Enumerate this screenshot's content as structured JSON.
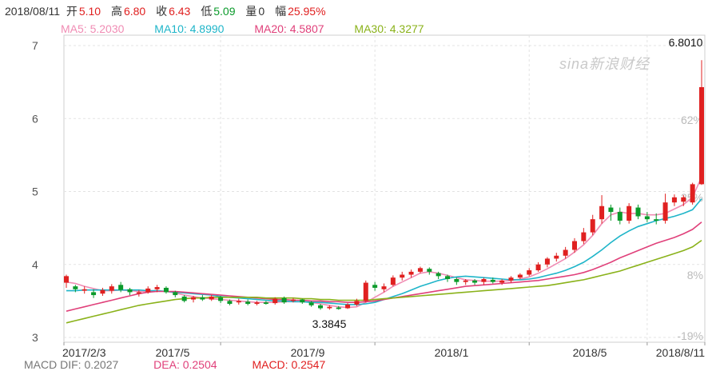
{
  "header": {
    "date": "2018/08/11",
    "open_label": "开",
    "open": "5.10",
    "high_label": "高",
    "high": "6.80",
    "close_label": "收",
    "close": "6.43",
    "low_label": "低",
    "low": "5.09",
    "volume_label": "量",
    "volume": "0",
    "change_label": "幅",
    "change": "25.95%"
  },
  "ma_legend": [
    {
      "label": "MA5: 5.2030",
      "color": "#f08cb4"
    },
    {
      "label": "MA10: 4.8990",
      "color": "#1fb5c9"
    },
    {
      "label": "MA20: 4.5807",
      "color": "#e0407a"
    },
    {
      "label": "MA30: 4.3277",
      "color": "#8ab21a"
    }
  ],
  "macd_legend": [
    {
      "label": "MACD  DIF: 0.2027",
      "color": "#777777"
    },
    {
      "label": "DEA: 0.2504",
      "color": "#e0407a"
    },
    {
      "label": "MACD: 0.2547",
      "color": "#e02020"
    }
  ],
  "watermark": "sina新浪财经",
  "chart_data": {
    "type": "candlestick",
    "x_ticks": [
      "2017/2/3",
      "2017/5",
      "2017/9",
      "2018/1",
      "2018/5",
      "2018/8/11"
    ],
    "y_ticks": [
      "7",
      "6",
      "5",
      "4",
      "3"
    ],
    "ylim": [
      3.0,
      7.0
    ],
    "pct_ticks": [
      "62%",
      "35%",
      "8%",
      "-19%"
    ],
    "annotations": {
      "max": "6.8010",
      "min": "3.3845"
    },
    "up_color": "#e02020",
    "down_color": "#0a9a2a",
    "candles": [
      [
        3.75,
        3.84,
        3.68,
        3.86
      ],
      [
        3.7,
        3.66,
        3.62,
        3.72
      ],
      [
        3.64,
        3.66,
        3.6,
        3.7
      ],
      [
        3.62,
        3.58,
        3.54,
        3.66
      ],
      [
        3.6,
        3.65,
        3.57,
        3.68
      ],
      [
        3.64,
        3.7,
        3.6,
        3.73
      ],
      [
        3.72,
        3.65,
        3.62,
        3.76
      ],
      [
        3.66,
        3.62,
        3.58,
        3.68
      ],
      [
        3.6,
        3.62,
        3.56,
        3.65
      ],
      [
        3.62,
        3.67,
        3.6,
        3.7
      ],
      [
        3.66,
        3.69,
        3.62,
        3.72
      ],
      [
        3.68,
        3.62,
        3.6,
        3.7
      ],
      [
        3.62,
        3.58,
        3.55,
        3.64
      ],
      [
        3.56,
        3.5,
        3.48,
        3.58
      ],
      [
        3.52,
        3.55,
        3.48,
        3.57
      ],
      [
        3.55,
        3.52,
        3.5,
        3.58
      ],
      [
        3.52,
        3.56,
        3.5,
        3.58
      ],
      [
        3.55,
        3.5,
        3.47,
        3.57
      ],
      [
        3.5,
        3.46,
        3.44,
        3.52
      ],
      [
        3.48,
        3.5,
        3.45,
        3.53
      ],
      [
        3.49,
        3.46,
        3.44,
        3.52
      ],
      [
        3.46,
        3.48,
        3.44,
        3.5
      ],
      [
        3.48,
        3.46,
        3.45,
        3.5
      ],
      [
        3.47,
        3.53,
        3.45,
        3.55
      ],
      [
        3.54,
        3.48,
        3.46,
        3.56
      ],
      [
        3.5,
        3.52,
        3.48,
        3.54
      ],
      [
        3.52,
        3.48,
        3.46,
        3.53
      ],
      [
        3.48,
        3.44,
        3.42,
        3.5
      ],
      [
        3.44,
        3.4,
        3.38,
        3.46
      ],
      [
        3.4,
        3.42,
        3.38,
        3.44
      ],
      [
        3.41,
        3.39,
        3.38,
        3.43
      ],
      [
        3.4,
        3.45,
        3.39,
        3.47
      ],
      [
        3.45,
        3.5,
        3.43,
        3.53
      ],
      [
        3.5,
        3.75,
        3.48,
        3.78
      ],
      [
        3.72,
        3.68,
        3.64,
        3.76
      ],
      [
        3.66,
        3.7,
        3.62,
        3.74
      ],
      [
        3.72,
        3.82,
        3.7,
        3.85
      ],
      [
        3.82,
        3.86,
        3.78,
        3.9
      ],
      [
        3.86,
        3.9,
        3.82,
        3.93
      ],
      [
        3.9,
        3.95,
        3.88,
        3.97
      ],
      [
        3.94,
        3.9,
        3.86,
        3.96
      ],
      [
        3.88,
        3.84,
        3.8,
        3.9
      ],
      [
        3.84,
        3.8,
        3.76,
        3.86
      ],
      [
        3.8,
        3.76,
        3.72,
        3.82
      ],
      [
        3.76,
        3.78,
        3.72,
        3.8
      ],
      [
        3.78,
        3.75,
        3.72,
        3.8
      ],
      [
        3.76,
        3.8,
        3.72,
        3.82
      ],
      [
        3.79,
        3.76,
        3.74,
        3.82
      ],
      [
        3.75,
        3.78,
        3.72,
        3.8
      ],
      [
        3.78,
        3.82,
        3.75,
        3.84
      ],
      [
        3.82,
        3.86,
        3.8,
        3.88
      ],
      [
        3.86,
        3.92,
        3.84,
        3.95
      ],
      [
        3.92,
        4.0,
        3.9,
        4.03
      ],
      [
        4.0,
        4.08,
        3.96,
        4.1
      ],
      [
        4.08,
        4.12,
        4.04,
        4.16
      ],
      [
        4.12,
        4.2,
        4.08,
        4.24
      ],
      [
        4.2,
        4.32,
        4.16,
        4.36
      ],
      [
        4.32,
        4.44,
        4.28,
        4.5
      ],
      [
        4.44,
        4.62,
        4.4,
        4.68
      ],
      [
        4.62,
        4.8,
        4.56,
        4.95
      ],
      [
        4.78,
        4.72,
        4.6,
        4.82
      ],
      [
        4.72,
        4.6,
        4.55,
        4.78
      ],
      [
        4.6,
        4.8,
        4.56,
        4.84
      ],
      [
        4.78,
        4.66,
        4.62,
        4.82
      ],
      [
        4.66,
        4.62,
        4.58,
        4.72
      ],
      [
        4.62,
        4.6,
        4.55,
        4.7
      ],
      [
        4.6,
        4.85,
        4.56,
        4.97
      ],
      [
        4.85,
        4.92,
        4.8,
        4.96
      ],
      [
        4.86,
        4.92,
        4.8,
        4.95
      ],
      [
        4.85,
        5.1,
        4.82,
        5.12
      ],
      [
        5.1,
        6.43,
        5.09,
        6.8
      ]
    ],
    "series": [
      {
        "name": "MA5",
        "color": "#f08cb4",
        "values": [
          3.76,
          3.74,
          3.7,
          3.67,
          3.64,
          3.64,
          3.65,
          3.64,
          3.63,
          3.63,
          3.64,
          3.63,
          3.61,
          3.58,
          3.56,
          3.54,
          3.53,
          3.52,
          3.51,
          3.5,
          3.49,
          3.48,
          3.48,
          3.48,
          3.49,
          3.49,
          3.49,
          3.48,
          3.46,
          3.44,
          3.42,
          3.41,
          3.42,
          3.48,
          3.55,
          3.62,
          3.7,
          3.76,
          3.82,
          3.88,
          3.9,
          3.88,
          3.85,
          3.82,
          3.79,
          3.78,
          3.77,
          3.77,
          3.77,
          3.78,
          3.8,
          3.83,
          3.88,
          3.94,
          4.01,
          4.08,
          4.17,
          4.27,
          4.4,
          4.56,
          4.68,
          4.72,
          4.7,
          4.7,
          4.68,
          4.68,
          4.7,
          4.76,
          4.82,
          4.92,
          5.2
        ]
      },
      {
        "name": "MA10",
        "color": "#1fb5c9",
        "values": [
          3.64,
          3.64,
          3.65,
          3.65,
          3.65,
          3.65,
          3.65,
          3.65,
          3.65,
          3.64,
          3.64,
          3.63,
          3.62,
          3.61,
          3.6,
          3.59,
          3.58,
          3.56,
          3.55,
          3.54,
          3.53,
          3.52,
          3.51,
          3.5,
          3.5,
          3.49,
          3.49,
          3.48,
          3.48,
          3.47,
          3.46,
          3.45,
          3.45,
          3.46,
          3.48,
          3.52,
          3.56,
          3.6,
          3.65,
          3.7,
          3.74,
          3.78,
          3.81,
          3.83,
          3.84,
          3.83,
          3.82,
          3.81,
          3.8,
          3.79,
          3.79,
          3.8,
          3.82,
          3.85,
          3.88,
          3.92,
          3.97,
          4.03,
          4.11,
          4.2,
          4.3,
          4.39,
          4.46,
          4.52,
          4.56,
          4.6,
          4.63,
          4.66,
          4.7,
          4.75,
          4.9
        ]
      },
      {
        "name": "MA20",
        "color": "#e0407a",
        "values": [
          3.36,
          3.39,
          3.42,
          3.45,
          3.48,
          3.51,
          3.54,
          3.57,
          3.6,
          3.62,
          3.63,
          3.63,
          3.63,
          3.62,
          3.61,
          3.6,
          3.59,
          3.58,
          3.57,
          3.56,
          3.55,
          3.54,
          3.53,
          3.52,
          3.52,
          3.51,
          3.51,
          3.5,
          3.5,
          3.49,
          3.49,
          3.48,
          3.48,
          3.49,
          3.5,
          3.52,
          3.54,
          3.56,
          3.58,
          3.6,
          3.62,
          3.64,
          3.66,
          3.68,
          3.7,
          3.71,
          3.72,
          3.73,
          3.74,
          3.75,
          3.76,
          3.77,
          3.78,
          3.8,
          3.82,
          3.84,
          3.86,
          3.89,
          3.93,
          3.98,
          4.03,
          4.09,
          4.14,
          4.19,
          4.24,
          4.29,
          4.33,
          4.37,
          4.42,
          4.48,
          4.58
        ]
      },
      {
        "name": "MA30",
        "color": "#8ab21a",
        "values": [
          3.2,
          3.23,
          3.26,
          3.29,
          3.32,
          3.35,
          3.38,
          3.41,
          3.44,
          3.46,
          3.48,
          3.5,
          3.52,
          3.53,
          3.54,
          3.54,
          3.55,
          3.55,
          3.55,
          3.55,
          3.55,
          3.55,
          3.54,
          3.54,
          3.54,
          3.54,
          3.53,
          3.53,
          3.52,
          3.52,
          3.51,
          3.51,
          3.51,
          3.51,
          3.52,
          3.53,
          3.54,
          3.55,
          3.56,
          3.57,
          3.58,
          3.59,
          3.6,
          3.61,
          3.62,
          3.63,
          3.64,
          3.65,
          3.66,
          3.67,
          3.68,
          3.69,
          3.7,
          3.71,
          3.73,
          3.75,
          3.77,
          3.79,
          3.82,
          3.85,
          3.88,
          3.91,
          3.95,
          3.99,
          4.03,
          4.07,
          4.11,
          4.15,
          4.19,
          4.24,
          4.33
        ]
      }
    ]
  }
}
